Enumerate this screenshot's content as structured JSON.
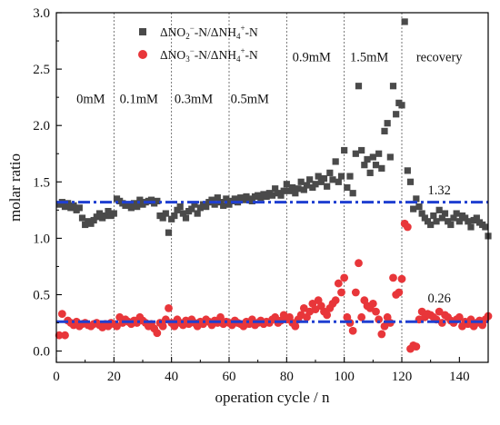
{
  "chart_data": {
    "type": "scatter",
    "xlabel": "operation cycle / n",
    "ylabel": "molar ratio",
    "xlim": [
      0,
      150
    ],
    "ylim": [
      -0.1,
      3.0
    ],
    "x_ticks": [
      0,
      20,
      40,
      60,
      80,
      100,
      120,
      140
    ],
    "y_ticks": [
      0.0,
      0.5,
      1.0,
      1.5,
      2.0,
      2.5,
      3.0
    ],
    "x_tick_labels": [
      "0",
      "20",
      "40",
      "60",
      "80",
      "100",
      "120",
      "140"
    ],
    "y_tick_labels": [
      "0.0",
      "0.5",
      "1.0",
      "1.5",
      "2.0",
      "2.5",
      "3.0"
    ],
    "grid": false,
    "legend_position": "top-center",
    "phase_boundaries": [
      20,
      40,
      60,
      80,
      100,
      120
    ],
    "phase_labels": [
      {
        "text": "0mM",
        "x": 7,
        "y": 2.2
      },
      {
        "text": "0.1mM",
        "x": 22,
        "y": 2.2
      },
      {
        "text": "0.3mM",
        "x": 41,
        "y": 2.2
      },
      {
        "text": "0.5mM",
        "x": 60.5,
        "y": 2.2
      },
      {
        "text": "0.9mM",
        "x": 82,
        "y": 2.57
      },
      {
        "text": "1.5mM",
        "x": 102,
        "y": 2.57
      },
      {
        "text": "recovery",
        "x": 125,
        "y": 2.57
      }
    ],
    "reference_lines": [
      {
        "label": "1.32",
        "value": 1.32,
        "label_x": 129,
        "label_y": 1.39,
        "color": "#1f3fd1"
      },
      {
        "label": "0.26",
        "value": 0.26,
        "label_x": 129,
        "label_y": 0.43,
        "color": "#1f3fd1"
      }
    ],
    "series": [
      {
        "name": "ΔNO2−-N/ΔNH4+-N",
        "legend_main": "ΔNO",
        "legend_sub1": "2",
        "legend_sup1": "−",
        "legend_mid": "-N/ΔNH",
        "legend_sub2": "4",
        "legend_sup2": "+",
        "legend_tail": "-N",
        "marker": "square",
        "color": "#4a4a4a",
        "x": [
          1,
          2,
          3,
          4,
          5,
          6,
          7,
          8,
          9,
          10,
          11,
          12,
          13,
          14,
          15,
          16,
          17,
          18,
          19,
          20,
          21,
          22,
          23,
          24,
          25,
          26,
          27,
          28,
          29,
          30,
          31,
          32,
          33,
          34,
          35,
          36,
          37,
          38,
          39,
          40,
          41,
          42,
          43,
          44,
          45,
          46,
          47,
          48,
          49,
          50,
          51,
          52,
          53,
          54,
          55,
          56,
          57,
          58,
          59,
          60,
          61,
          62,
          63,
          64,
          65,
          66,
          67,
          68,
          69,
          70,
          71,
          72,
          73,
          74,
          75,
          76,
          77,
          78,
          79,
          80,
          81,
          82,
          83,
          84,
          85,
          86,
          87,
          88,
          89,
          90,
          91,
          92,
          93,
          94,
          95,
          96,
          97,
          98,
          99,
          100,
          101,
          102,
          103,
          104,
          105,
          106,
          107,
          108,
          109,
          110,
          111,
          112,
          113,
          114,
          115,
          116,
          117,
          118,
          119,
          120,
          121,
          122,
          123,
          124,
          125,
          126,
          127,
          128,
          129,
          130,
          131,
          132,
          133,
          134,
          135,
          136,
          137,
          138,
          139,
          140,
          141,
          142,
          143,
          144,
          145,
          146,
          147,
          148,
          149,
          150
        ],
        "y": [
          1.3,
          1.32,
          1.28,
          1.31,
          1.27,
          1.29,
          1.25,
          1.27,
          1.18,
          1.12,
          1.15,
          1.13,
          1.16,
          1.19,
          1.22,
          1.18,
          1.2,
          1.24,
          1.2,
          1.22,
          1.35,
          1.33,
          1.31,
          1.29,
          1.3,
          1.27,
          1.31,
          1.28,
          1.34,
          1.3,
          1.32,
          1.33,
          1.34,
          1.31,
          1.33,
          1.2,
          1.18,
          1.22,
          1.05,
          1.17,
          1.2,
          1.25,
          1.28,
          1.22,
          1.18,
          1.24,
          1.26,
          1.3,
          1.22,
          1.27,
          1.3,
          1.28,
          1.32,
          1.34,
          1.3,
          1.36,
          1.32,
          1.29,
          1.35,
          1.3,
          1.33,
          1.35,
          1.32,
          1.36,
          1.34,
          1.37,
          1.35,
          1.33,
          1.37,
          1.38,
          1.36,
          1.39,
          1.37,
          1.4,
          1.38,
          1.44,
          1.4,
          1.38,
          1.42,
          1.48,
          1.42,
          1.45,
          1.4,
          1.44,
          1.5,
          1.43,
          1.47,
          1.52,
          1.45,
          1.48,
          1.55,
          1.5,
          1.53,
          1.46,
          1.58,
          1.52,
          1.68,
          1.5,
          1.55,
          1.78,
          1.45,
          1.55,
          1.4,
          1.75,
          2.35,
          1.78,
          1.65,
          1.7,
          1.58,
          1.72,
          1.65,
          1.75,
          1.62,
          1.95,
          2.02,
          1.72,
          2.35,
          2.1,
          2.2,
          2.18,
          2.92,
          1.6,
          1.5,
          1.26,
          1.35,
          1.28,
          1.22,
          1.18,
          1.15,
          1.12,
          1.2,
          1.15,
          1.25,
          1.18,
          1.22,
          1.15,
          1.12,
          1.18,
          1.22,
          1.15,
          1.2,
          1.18,
          1.15,
          1.1,
          1.16,
          1.18,
          1.14,
          1.12,
          1.1,
          1.02
        ]
      },
      {
        "name": "ΔNO3−-N/ΔNH4+-N",
        "legend_main": "ΔNO",
        "legend_sub1": "3",
        "legend_sup1": "−",
        "legend_mid": "-N/ΔNH",
        "legend_sub2": "4",
        "legend_sup2": "+",
        "legend_tail": "-N",
        "marker": "circle",
        "color": "#e8363a",
        "x": [
          1,
          2,
          3,
          4,
          5,
          6,
          7,
          8,
          9,
          10,
          11,
          12,
          13,
          14,
          15,
          16,
          17,
          18,
          19,
          20,
          21,
          22,
          23,
          24,
          25,
          26,
          27,
          28,
          29,
          30,
          31,
          32,
          33,
          34,
          35,
          36,
          37,
          38,
          39,
          40,
          41,
          42,
          43,
          44,
          45,
          46,
          47,
          48,
          49,
          50,
          51,
          52,
          53,
          54,
          55,
          56,
          57,
          58,
          59,
          60,
          61,
          62,
          63,
          64,
          65,
          66,
          67,
          68,
          69,
          70,
          71,
          72,
          73,
          74,
          75,
          76,
          77,
          78,
          79,
          80,
          81,
          82,
          83,
          84,
          85,
          86,
          87,
          88,
          89,
          90,
          91,
          92,
          93,
          94,
          95,
          96,
          97,
          98,
          99,
          100,
          101,
          102,
          103,
          104,
          105,
          106,
          107,
          108,
          109,
          110,
          111,
          112,
          113,
          114,
          115,
          116,
          117,
          118,
          119,
          120,
          121,
          122,
          123,
          124,
          125,
          126,
          127,
          128,
          129,
          130,
          131,
          132,
          133,
          134,
          135,
          136,
          137,
          138,
          139,
          140,
          141,
          142,
          143,
          144,
          145,
          146,
          147,
          148,
          149,
          150
        ],
        "y": [
          0.14,
          0.33,
          0.14,
          0.27,
          0.25,
          0.23,
          0.26,
          0.22,
          0.24,
          0.25,
          0.23,
          0.22,
          0.24,
          0.25,
          0.23,
          0.21,
          0.24,
          0.22,
          0.25,
          0.24,
          0.22,
          0.3,
          0.25,
          0.28,
          0.26,
          0.24,
          0.27,
          0.25,
          0.3,
          0.27,
          0.25,
          0.22,
          0.24,
          0.2,
          0.16,
          0.25,
          0.22,
          0.28,
          0.38,
          0.25,
          0.22,
          0.28,
          0.25,
          0.23,
          0.27,
          0.24,
          0.28,
          0.25,
          0.22,
          0.26,
          0.24,
          0.28,
          0.26,
          0.23,
          0.27,
          0.25,
          0.3,
          0.24,
          0.26,
          0.25,
          0.23,
          0.27,
          0.25,
          0.24,
          0.22,
          0.26,
          0.24,
          0.28,
          0.23,
          0.25,
          0.27,
          0.24,
          0.26,
          0.25,
          0.28,
          0.3,
          0.25,
          0.27,
          0.32,
          0.28,
          0.3,
          0.25,
          0.22,
          0.28,
          0.32,
          0.38,
          0.3,
          0.35,
          0.42,
          0.37,
          0.45,
          0.4,
          0.35,
          0.32,
          0.38,
          0.42,
          0.45,
          0.6,
          0.52,
          0.65,
          0.3,
          0.25,
          0.18,
          0.52,
          0.78,
          0.3,
          0.45,
          0.4,
          0.38,
          0.42,
          0.35,
          0.28,
          0.15,
          0.22,
          0.3,
          0.25,
          0.65,
          0.5,
          0.52,
          0.64,
          1.13,
          1.1,
          0.02,
          0.05,
          0.04,
          0.28,
          0.35,
          0.3,
          0.33,
          0.32,
          0.3,
          0.28,
          0.35,
          0.25,
          0.32,
          0.3,
          0.27,
          0.25,
          0.28,
          0.3,
          0.22,
          0.26,
          0.24,
          0.28,
          0.22,
          0.25,
          0.27,
          0.23,
          0.28,
          0.31
        ]
      }
    ]
  }
}
